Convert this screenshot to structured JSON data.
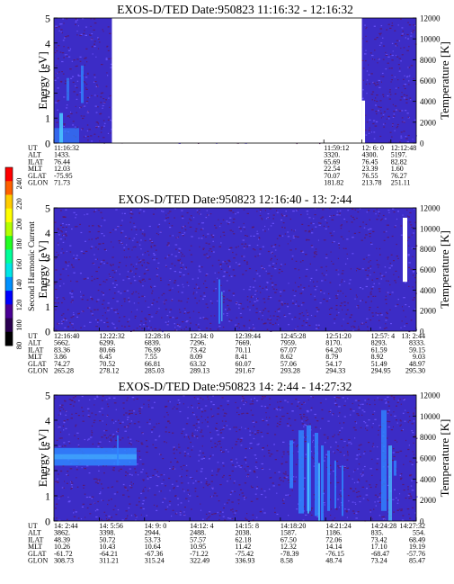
{
  "colorbar": {
    "title": "Second Harmonic Current",
    "ticks": [
      "240",
      "220",
      "200",
      "180",
      "160",
      "140",
      "120",
      "100",
      "80"
    ],
    "colors": [
      "#ff0000",
      "#ff6000",
      "#ffcc00",
      "#ffff00",
      "#b4ff00",
      "#22ff22",
      "#00ff9a",
      "#00e6e6",
      "#0090ff",
      "#0000ff",
      "#4a0096",
      "#2a0050",
      "#000000"
    ]
  },
  "palette": {
    "background": "#3c2cc6",
    "speckle_dark": "#5c1868",
    "speckle_light": "#6d56ff",
    "enhanced": "#2f86ff",
    "bright": "#49c2ff",
    "gap": "#ffffff"
  },
  "chart_data": [
    {
      "type": "heatmap",
      "title": "EXOS-D/TED   Date:950823   11:16:32 - 12:16:32",
      "ylabel": "Energy [eV]",
      "ylim": [
        0,
        5
      ],
      "yticks": [
        "0",
        "1",
        "2",
        "3",
        "4",
        "5"
      ],
      "y2label": "Temperature [K]",
      "y2lim": [
        0,
        12000
      ],
      "y2ticks": [
        "0",
        "2000",
        "4000",
        "6000",
        "8000",
        "10000",
        "12000"
      ],
      "data_gap": [
        0.16,
        0.85
      ],
      "orbit_table": {
        "row_labels": [
          "UT",
          "ALT",
          "ILAT",
          "MLT",
          "GLAT",
          "GLON"
        ],
        "columns": [
          {
            "values": [
              "11:16:32",
              "1433.",
              "76.44",
              "12.03",
              "-75.95",
              "71.73"
            ]
          },
          {
            "values": [
              "11:59:12",
              "3320.",
              "65.69",
              "22.54",
              "70.07",
              "181.82"
            ]
          },
          {
            "values": [
              "12: 6: 0",
              "4300.",
              "76.45",
              "23.39",
              "76.55",
              "213.78"
            ]
          },
          {
            "values": [
              "12:12:48",
              "5197.",
              "82.82",
              "1.60",
              "76.27",
              "251.11"
            ]
          }
        ]
      }
    },
    {
      "type": "heatmap",
      "title": "EXOS-D/TED   Date:950823   12:16:40 - 13: 2:44",
      "ylabel": "Energy [eV]",
      "ylim": [
        0,
        5
      ],
      "yticks": [
        "0",
        "1",
        "2",
        "3",
        "4",
        "5"
      ],
      "y2label": "Temperature [K]",
      "y2lim": [
        0,
        12000
      ],
      "y2ticks": [
        "0",
        "2000",
        "4000",
        "6000",
        "8000",
        "10000",
        "12000"
      ],
      "orbit_table": {
        "row_labels": [
          "UT",
          "ALT",
          "ILAT",
          "MLT",
          "GLAT",
          "GLON"
        ],
        "columns": [
          {
            "values": [
              "12:16:40",
              "5662.",
              "83.36",
              "3.86",
              "74.27",
              "265.28"
            ]
          },
          {
            "values": [
              "12:22:32",
              "6299.",
              "80.66",
              "6.45",
              "70.52",
              "278.12"
            ]
          },
          {
            "values": [
              "12:28:16",
              "6839.",
              "76.99",
              "7.55",
              "66.81",
              "285.03"
            ]
          },
          {
            "values": [
              "12:34: 0",
              "7296.",
              "73.42",
              "8.09",
              "63.32",
              "289.13"
            ]
          },
          {
            "values": [
              "12:39:44",
              "7669.",
              "70.11",
              "8.41",
              "60.07",
              "291.67"
            ]
          },
          {
            "values": [
              "12:45:28",
              "7959.",
              "67.07",
              "8.62",
              "57.06",
              "293.28"
            ]
          },
          {
            "values": [
              "12:51:20",
              "8170.",
              "64.20",
              "8.79",
              "54.17",
              "294.33"
            ]
          },
          {
            "values": [
              "12:57: 4",
              "8293.",
              "61.59",
              "8.92",
              "51.49",
              "294.95"
            ]
          },
          {
            "values": [
              "13: 2:44",
              "8333.",
              "59.15",
              "9.03",
              "48.97",
              "295.30"
            ]
          }
        ]
      }
    },
    {
      "type": "heatmap",
      "title": "EXOS-D/TED   Date:950823   14: 2:44 - 14:27:32",
      "ylabel": "Energy [eV]",
      "ylim": [
        0,
        5
      ],
      "yticks": [
        "0",
        "1",
        "2",
        "3",
        "4",
        "5"
      ],
      "y2label": "Temperature [K]",
      "y2lim": [
        0,
        12000
      ],
      "y2ticks": [
        "0",
        "2000",
        "4000",
        "6000",
        "8000",
        "10000",
        "12000"
      ],
      "orbit_table": {
        "row_labels": [
          "UT",
          "ALT",
          "ILAT",
          "MLT",
          "GLAT",
          "GLON"
        ],
        "columns": [
          {
            "values": [
              "14: 2:44",
              "3862.",
              "48.39",
              "10.26",
              "-61.72",
              "308.73"
            ]
          },
          {
            "values": [
              "14: 5:56",
              "3398.",
              "50.72",
              "10.43",
              "-64.21",
              "311.21"
            ]
          },
          {
            "values": [
              "14: 9: 0",
              "2944.",
              "53.73",
              "10.64",
              "-67.36",
              "315.24"
            ]
          },
          {
            "values": [
              "14:12: 4",
              "2488.",
              "57.57",
              "10.95",
              "-71.22",
              "322.49"
            ]
          },
          {
            "values": [
              "14:15: 8",
              "2038.",
              "62.18",
              "11.42",
              "-75.42",
              "336.93"
            ]
          },
          {
            "values": [
              "14:18:20",
              "1587.",
              "67.50",
              "12.32",
              "-78.39",
              "8.58"
            ]
          },
          {
            "values": [
              "14:21:24",
              "1186.",
              "72.06",
              "14.14",
              "-76.15",
              "48.74"
            ]
          },
          {
            "values": [
              "14:24:28",
              "835.",
              "73.42",
              "17.10",
              "-68.47",
              "73.24"
            ]
          },
          {
            "values": [
              "14:27:32",
              "554.",
              "68.49",
              "19.19",
              "-57.76",
              "85.47"
            ]
          }
        ]
      }
    }
  ]
}
